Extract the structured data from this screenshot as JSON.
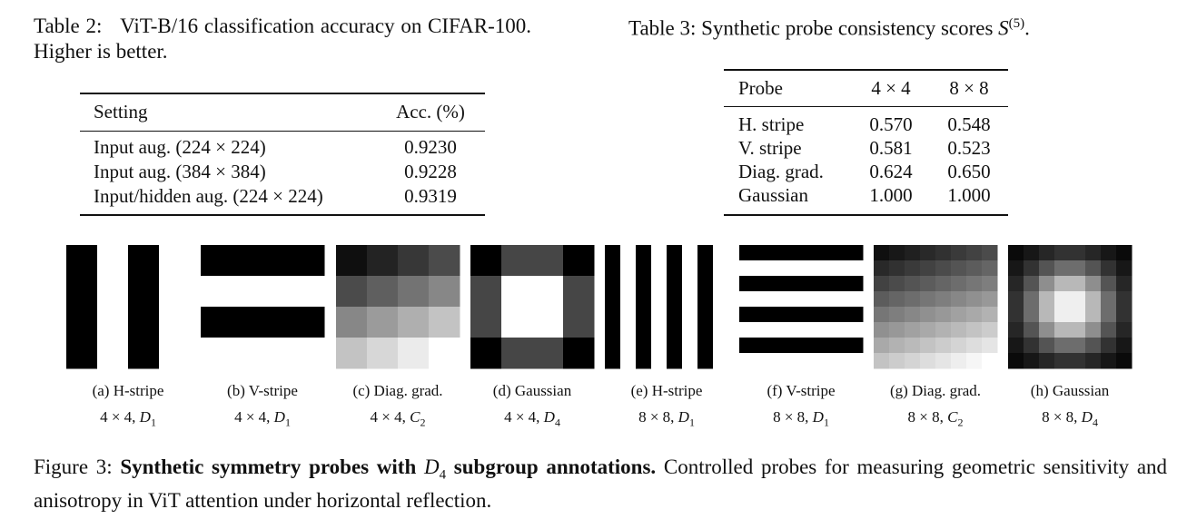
{
  "table2": {
    "caption": {
      "label": "Table 2:",
      "text": "ViT-B/16 classification accuracy on CIFAR-100. Higher is better."
    },
    "header": [
      "Setting",
      "Acc. (%)"
    ],
    "rows": [
      [
        "Input aug. (224 × 224)",
        "0.9230"
      ],
      [
        "Input aug. (384 × 384)",
        "0.9228"
      ],
      [
        "Input/hidden aug. (224 × 224)",
        "0.9319"
      ]
    ]
  },
  "table3": {
    "caption": {
      "label": "Table 3:",
      "text": "Synthetic probe consistency scores",
      "math": "S",
      "sup": "(5)",
      "end": "."
    },
    "header": [
      "Probe",
      "4 × 4",
      "8 × 8"
    ],
    "rows": [
      [
        "H. stripe",
        "0.570",
        "0.548"
      ],
      [
        "V. stripe",
        "0.581",
        "0.523"
      ],
      [
        "Diag. grad.",
        "0.624",
        "0.650"
      ],
      [
        "Gaussian",
        "1.000",
        "1.000"
      ]
    ]
  },
  "figure": {
    "panels": [
      {
        "caption": "(a) H-stripe",
        "size": "4 × 4,",
        "group": "D",
        "sub": "1"
      },
      {
        "caption": "(b) V-stripe",
        "size": "4 × 4,",
        "group": "D",
        "sub": "1"
      },
      {
        "caption": "(c) Diag. grad.",
        "size": "4 × 4,",
        "group": "C",
        "sub": "2"
      },
      {
        "caption": "(d) Gaussian",
        "size": "4 × 4,",
        "group": "D",
        "sub": "4"
      },
      {
        "caption": "(e) H-stripe",
        "size": "8 × 8,",
        "group": "D",
        "sub": "1"
      },
      {
        "caption": "(f) V-stripe",
        "size": "8 × 8,",
        "group": "D",
        "sub": "1"
      },
      {
        "caption": "(g) Diag. grad.",
        "size": "8 × 8,",
        "group": "C",
        "sub": "2"
      },
      {
        "caption": "(h) Gaussian",
        "size": "8 × 8,",
        "group": "D",
        "sub": "4"
      }
    ],
    "caption": {
      "label": "Figure 3:",
      "bold": "Synthetic symmetry probes with",
      "math": "D",
      "sub": "4",
      "bold_end": "subgroup annotations.",
      "text": "Controlled probes for measuring geometric sensitivity and anisotropy in ViT attention under horizontal reflection."
    }
  }
}
